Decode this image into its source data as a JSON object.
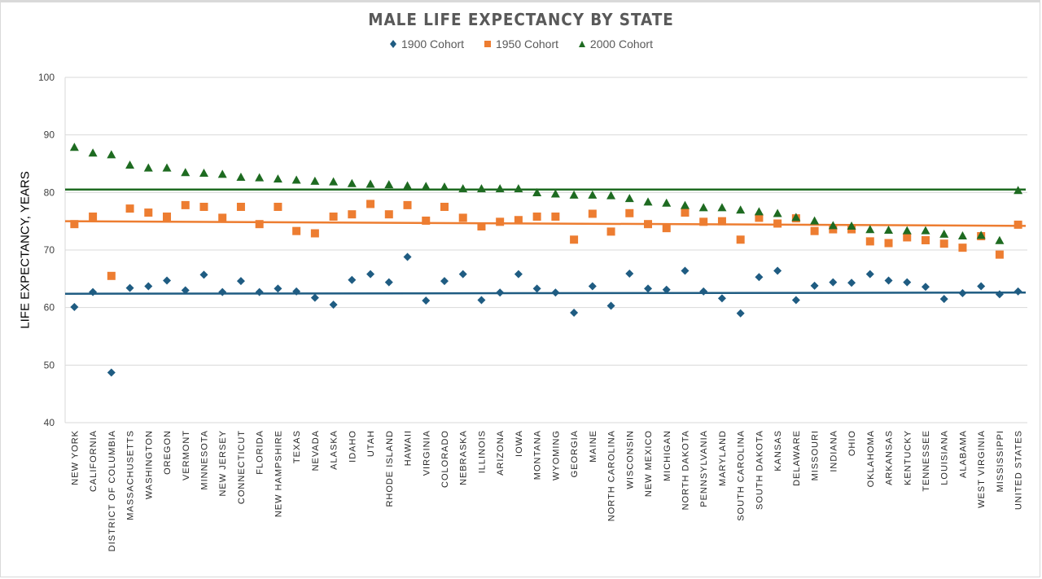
{
  "chart_data": {
    "type": "scatter",
    "title": "MALE LIFE EXPECTANCY BY STATE",
    "xlabel": "",
    "ylabel": "LIFE EXPECTANCY, YEARS",
    "ylim": [
      40,
      100
    ],
    "yticks": [
      40,
      50,
      60,
      70,
      80,
      90,
      100
    ],
    "grid": true,
    "legend_position": "top-center",
    "categories": [
      "NEW YORK",
      "CALIFORNIA",
      "DISTRICT OF COLUMBIA",
      "MASSACHUSETTS",
      "WASHINGTON",
      "OREGON",
      "VERMONT",
      "MINNESOTA",
      "NEW JERSEY",
      "CONNECTICUT",
      "FLORIDA",
      "NEW HAMPSHIRE",
      "TEXAS",
      "NEVADA",
      "ALASKA",
      "IDAHO",
      "UTAH",
      "RHODE ISLAND",
      "HAWAII",
      "VIRGINIA",
      "COLORADO",
      "NEBRASKA",
      "ILLINOIS",
      "ARIZONA",
      "IOWA",
      "MONTANA",
      "WYOMING",
      "GEORGIA",
      "MAINE",
      "NORTH CAROLINA",
      "WISCONSIN",
      "NEW MEXICO",
      "MICHIGAN",
      "NORTH DAKOTA",
      "PENNSYLVANIA",
      "MARYLAND",
      "SOUTH CAROLINA",
      "SOUTH DAKOTA",
      "KANSAS",
      "DELAWARE",
      "MISSOURI",
      "INDIANA",
      "OHIO",
      "OKLAHOMA",
      "ARKANSAS",
      "KENTUCKY",
      "TENNESSEE",
      "LOUISIANA",
      "ALABAMA",
      "WEST VIRGINIA",
      "MISSISSIPPI",
      "UNITED STATES"
    ],
    "series": [
      {
        "name": "1900 Cohort",
        "marker": "diamond",
        "color": "#1f5c82",
        "values": [
          60.1,
          62.7,
          48.7,
          63.4,
          63.7,
          64.7,
          63.0,
          65.7,
          62.7,
          64.6,
          62.7,
          63.3,
          62.8,
          61.7,
          60.5,
          64.8,
          65.8,
          64.4,
          68.8,
          61.2,
          64.6,
          65.8,
          61.3,
          62.6,
          65.8,
          63.3,
          62.6,
          59.1,
          63.7,
          60.3,
          65.9,
          63.3,
          63.1,
          66.4,
          62.8,
          61.6,
          59.0,
          65.3,
          66.4,
          61.3,
          63.8,
          64.4,
          64.3,
          65.8,
          64.7,
          64.4,
          63.6,
          61.5,
          62.5,
          63.7,
          62.3,
          62.8
        ],
        "trendline": [
          62.4,
          62.6
        ]
      },
      {
        "name": "1950 Cohort",
        "marker": "square",
        "color": "#ed7d31",
        "values": [
          74.5,
          75.8,
          65.5,
          77.2,
          76.5,
          75.8,
          77.8,
          77.5,
          75.6,
          77.5,
          74.5,
          77.5,
          73.3,
          72.9,
          75.8,
          76.2,
          78.0,
          76.2,
          77.8,
          75.1,
          77.5,
          75.6,
          74.1,
          74.9,
          75.2,
          75.8,
          75.8,
          71.8,
          76.3,
          73.2,
          76.4,
          74.5,
          73.8,
          76.5,
          74.9,
          75.0,
          71.8,
          75.6,
          74.6,
          75.5,
          73.3,
          73.6,
          73.6,
          71.5,
          71.2,
          72.2,
          71.7,
          71.1,
          70.4,
          72.4,
          69.2,
          74.4
        ],
        "trendline": [
          75.0,
          74.2
        ]
      },
      {
        "name": "2000 Cohort",
        "marker": "triangle",
        "color": "#1e6b21",
        "values": [
          87.8,
          86.8,
          86.5,
          84.7,
          84.2,
          84.2,
          83.4,
          83.3,
          83.1,
          82.6,
          82.5,
          82.3,
          82.1,
          81.9,
          81.8,
          81.5,
          81.4,
          81.3,
          81.1,
          81.0,
          80.9,
          80.6,
          80.6,
          80.6,
          80.6,
          79.9,
          79.7,
          79.5,
          79.5,
          79.4,
          78.9,
          78.3,
          78.1,
          77.7,
          77.3,
          77.3,
          76.9,
          76.6,
          76.3,
          75.6,
          75.0,
          74.2,
          74.1,
          73.5,
          73.4,
          73.3,
          73.3,
          72.7,
          72.4,
          72.5,
          71.6,
          80.3
        ],
        "trendline": [
          80.5,
          80.5
        ]
      }
    ]
  }
}
